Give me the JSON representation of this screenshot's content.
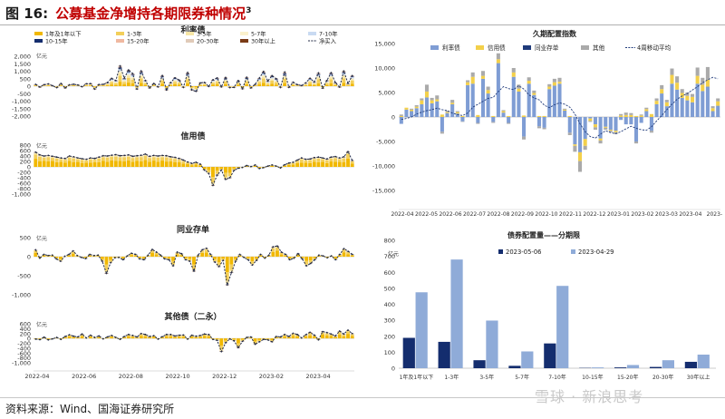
{
  "header": {
    "prefix": "图 16:",
    "title": "公募基金净增持各期限券种情况",
    "superscript": "3"
  },
  "footer": {
    "source": "资料来源：Wind、国海证券研究所"
  },
  "watermark": "雪球 · 新浪思考",
  "colors": {
    "b_1y": "#f1b800",
    "b_1_3y": "#f3cf5a",
    "b_3_5y": "#f7e6a6",
    "b_5_7y": "#fbf1cc",
    "b_7_10y": "#c9daf2",
    "b_10_15y": "#142d6e",
    "b_15_20y": "#f0b8a0",
    "b_20_30y": "#e0cab8",
    "b_30y_plus": "#7a3b16",
    "net": "#222a44",
    "dur_rate": "#7f9dd4",
    "dur_credit": "#f3d04b",
    "dur_ncd": "#1f3a7a",
    "dur_other": "#aaaaaa",
    "dur_ma4": "#1f3a7a",
    "mat_a": "#142d6e",
    "mat_b": "#8fabd8"
  },
  "chart_data": [
    {
      "type": "bar",
      "title": "利率债",
      "unit": "亿元",
      "ylim": [
        -2000,
        2000
      ],
      "yticks": [
        "2,000",
        "1,500",
        "1,000",
        "500",
        "0",
        "-500",
        "-1,000",
        "-1,500",
        "-2,000"
      ],
      "legend": [
        "1年及1年以下",
        "1-3年",
        "3-5年",
        "5-7年",
        "7-10年",
        "10-15年",
        "15-20年",
        "20-30年",
        "30年以上",
        "净买入"
      ],
      "net": [
        120,
        -60,
        100,
        150,
        30,
        -100,
        180,
        -120,
        90,
        130,
        80,
        -40,
        160,
        170,
        -200,
        110,
        120,
        240,
        520,
        380,
        1350,
        540,
        1080,
        840,
        -200,
        1010,
        380,
        -120,
        180,
        -50,
        700,
        -260,
        240,
        560,
        410,
        -80,
        900,
        -260,
        -350,
        220,
        250,
        -20,
        420,
        550,
        -50,
        580,
        -100,
        -80,
        370,
        -180,
        600,
        -120,
        120,
        540,
        980,
        340,
        700,
        500,
        -80,
        930,
        -80,
        260,
        100,
        40,
        220,
        530,
        280,
        880,
        -140,
        380,
        900,
        240,
        -60,
        1010,
        180,
        700
      ]
    },
    {
      "type": "bar",
      "title": "信用债",
      "unit": "亿元",
      "ylim": [
        -1000,
        800
      ],
      "yticks": [
        "800",
        "600",
        "400",
        "200",
        "0",
        "-200",
        "-400",
        "-600",
        "-800",
        "-1,000"
      ],
      "net": [
        540,
        440,
        400,
        420,
        390,
        360,
        330,
        310,
        400,
        370,
        330,
        300,
        280,
        330,
        310,
        360,
        410,
        400,
        430,
        450,
        410,
        420,
        440,
        390,
        410,
        430,
        470,
        390,
        420,
        400,
        420,
        410,
        370,
        350,
        310,
        250,
        180,
        130,
        170,
        100,
        -120,
        -240,
        -680,
        -300,
        -120,
        -460,
        -400,
        -130,
        -50,
        -20,
        50,
        10,
        70,
        -60,
        -30,
        30,
        70,
        30,
        -40,
        80,
        140,
        170,
        250,
        330,
        280,
        290,
        340,
        360,
        330,
        290,
        360,
        380,
        330,
        370,
        560,
        240
      ]
    },
    {
      "type": "bar",
      "title": "同业存单",
      "unit": "亿元",
      "ylim": [
        -1000,
        500
      ],
      "yticks": [
        "500",
        "0",
        "-500",
        "-1,000"
      ],
      "net": [
        180,
        -40,
        60,
        30,
        40,
        -60,
        -120,
        10,
        60,
        150,
        30,
        -20,
        -50,
        60,
        30,
        40,
        -120,
        -440,
        -160,
        -30,
        -20,
        -80,
        20,
        90,
        60,
        -60,
        -80,
        40,
        190,
        120,
        40,
        -60,
        -80,
        -240,
        120,
        80,
        -80,
        -120,
        -380,
        40,
        180,
        220,
        60,
        -140,
        -260,
        -100,
        -740,
        -420,
        -120,
        60,
        -20,
        -80,
        -220,
        -100,
        60,
        -40,
        40,
        260,
        280,
        120,
        60,
        -80,
        -40,
        80,
        -60,
        -240,
        -180,
        -80,
        40,
        20,
        -30,
        20,
        -80,
        60,
        210,
        140,
        60
      ]
    },
    {
      "type": "bar",
      "title": "其他债（二永）",
      "unit": "亿元",
      "ylim": [
        -1000,
        600
      ],
      "yticks": [
        "600",
        "400",
        "200",
        "0",
        "-200",
        "-400",
        "-600",
        "-800",
        "-1,000"
      ],
      "net": [
        -30,
        -50,
        50,
        -60,
        -20,
        40,
        -40,
        80,
        150,
        90,
        60,
        180,
        20,
        130,
        40,
        100,
        -20,
        60,
        120,
        40,
        -40,
        80,
        160,
        120,
        60,
        200,
        160,
        80,
        110,
        -30,
        70,
        160,
        160,
        100,
        130,
        140,
        -30,
        130,
        90,
        120,
        180,
        160,
        -40,
        -80,
        -540,
        -180,
        -20,
        -100,
        -380,
        -120,
        40,
        60,
        -240,
        -140,
        -40,
        -60,
        -140,
        80,
        60,
        160,
        80,
        210,
        160,
        20,
        150,
        250,
        140,
        -60,
        280,
        240,
        180,
        100,
        300,
        180,
        340,
        200
      ]
    },
    {
      "type": "bar",
      "title": "久期配置指数",
      "ylim": [
        -15000,
        15000
      ],
      "yticks": [
        "15,000",
        "10,000",
        "5,000",
        "0",
        "-5,000",
        "-10,000",
        "-15,000"
      ],
      "legend": [
        "利率债",
        "信用债",
        "同业存单",
        "其他",
        "4周移动平均"
      ],
      "x_ticks": [
        "2022-04",
        "2022-05",
        "2022-06",
        "2022-07",
        "2022-08",
        "2022-09",
        "2022-10",
        "2022-11",
        "2022-12",
        "2023-01",
        "2023-02",
        "2023-03",
        "2023-04",
        "2023-"
      ],
      "rate": [
        -1400,
        1500,
        1200,
        1800,
        2600,
        4000,
        2800,
        3200,
        -3000,
        800,
        2600,
        700,
        -900,
        6500,
        6800,
        -1200,
        7800,
        4800,
        -1000,
        11000,
        900,
        -1200,
        8200,
        5200,
        -4000,
        6800,
        4500,
        -1900,
        -2200,
        5700,
        6400,
        6800,
        1300,
        -3200,
        -5600,
        -7200,
        -4500,
        -300,
        -1500,
        -4400,
        -2000,
        -2600,
        -2800,
        -600,
        -1500,
        -1500,
        -5000,
        -1200,
        1200,
        -2800,
        2600,
        4800,
        2200,
        6800,
        5600,
        3900,
        3400,
        3000,
        6800,
        5300,
        6200,
        1200,
        2300
      ],
      "credit": [
        200,
        400,
        300,
        300,
        800,
        1200,
        600,
        400,
        500,
        200,
        300,
        300,
        200,
        600,
        1400,
        400,
        600,
        700,
        200,
        800,
        300,
        200,
        900,
        600,
        300,
        600,
        400,
        200,
        200,
        500,
        700,
        400,
        200,
        200,
        -300,
        -1800,
        -1400,
        -500,
        -600,
        -400,
        -200,
        -200,
        -300,
        300,
        400,
        400,
        200,
        300,
        400,
        600,
        700,
        900,
        800,
        1800,
        1400,
        1000,
        900,
        1100,
        1600,
        1300,
        1400,
        600,
        900
      ],
      "ncd": [
        0,
        0,
        0,
        0,
        0,
        0,
        0,
        0,
        0,
        0,
        0,
        0,
        0,
        0,
        0,
        0,
        0,
        0,
        0,
        0,
        0,
        0,
        0,
        0,
        0,
        0,
        0,
        0,
        0,
        0,
        0,
        0,
        0,
        0,
        0,
        0,
        0,
        0,
        0,
        0,
        0,
        0,
        0,
        0,
        0,
        0,
        0,
        0,
        0,
        0,
        0,
        0,
        0,
        0,
        0,
        0,
        0,
        0,
        0,
        0,
        0,
        0,
        0
      ],
      "other": [
        300,
        -100,
        200,
        300,
        400,
        1400,
        500,
        800,
        -400,
        300,
        600,
        200,
        -100,
        400,
        900,
        -200,
        1000,
        700,
        -200,
        1200,
        200,
        -200,
        900,
        800,
        -600,
        700,
        500,
        -400,
        -300,
        500,
        700,
        800,
        200,
        -500,
        -1200,
        -2200,
        -800,
        -200,
        -500,
        -600,
        -400,
        -300,
        -400,
        300,
        500,
        400,
        -400,
        200,
        300,
        -400,
        500,
        800,
        500,
        1300,
        1300,
        800,
        700,
        600,
        1700,
        1400,
        2600,
        400,
        600
      ],
      "ma4": [
        -500,
        -300,
        0,
        600,
        1000,
        1300,
        1500,
        1800,
        1500,
        1300,
        800,
        500,
        300,
        800,
        2000,
        2600,
        3200,
        3800,
        4000,
        5200,
        6200,
        5800,
        5600,
        6400,
        5700,
        4500,
        3900,
        3500,
        2400,
        1900,
        2500,
        2900,
        2600,
        2000,
        600,
        -1400,
        -3000,
        -4000,
        -4300,
        -3500,
        -2800,
        -3200,
        -3400,
        -3000,
        -2400,
        -1900,
        -2300,
        -2600,
        -2700,
        -2000,
        -800,
        300,
        1500,
        2600,
        3600,
        4300,
        4800,
        5500,
        6200,
        7000,
        7600,
        8100,
        7800
      ]
    },
    {
      "type": "bar",
      "title": "债券配置量——分期限",
      "unit": "亿元",
      "ylim": [
        0,
        800
      ],
      "yticks": [
        "800",
        "700",
        "600",
        "500",
        "400",
        "300",
        "200",
        "100",
        "0"
      ],
      "categories": [
        "1年及1年以下",
        "1-3年",
        "3-5年",
        "5-7年",
        "7-10年",
        "10-15年",
        "15-20年",
        "20-30年",
        "30年以上"
      ],
      "series": [
        {
          "name": "2023-05-06",
          "values": [
            190,
            165,
            50,
            15,
            155,
            2,
            5,
            8,
            40
          ]
        },
        {
          "name": "2023-04-29",
          "values": [
            475,
            680,
            298,
            105,
            515,
            5,
            20,
            50,
            85
          ]
        }
      ]
    }
  ],
  "left_x_ticks": [
    "2022-04",
    "2022-06",
    "2022-08",
    "2022-10",
    "2022-12",
    "2023-02",
    "2023-04"
  ]
}
